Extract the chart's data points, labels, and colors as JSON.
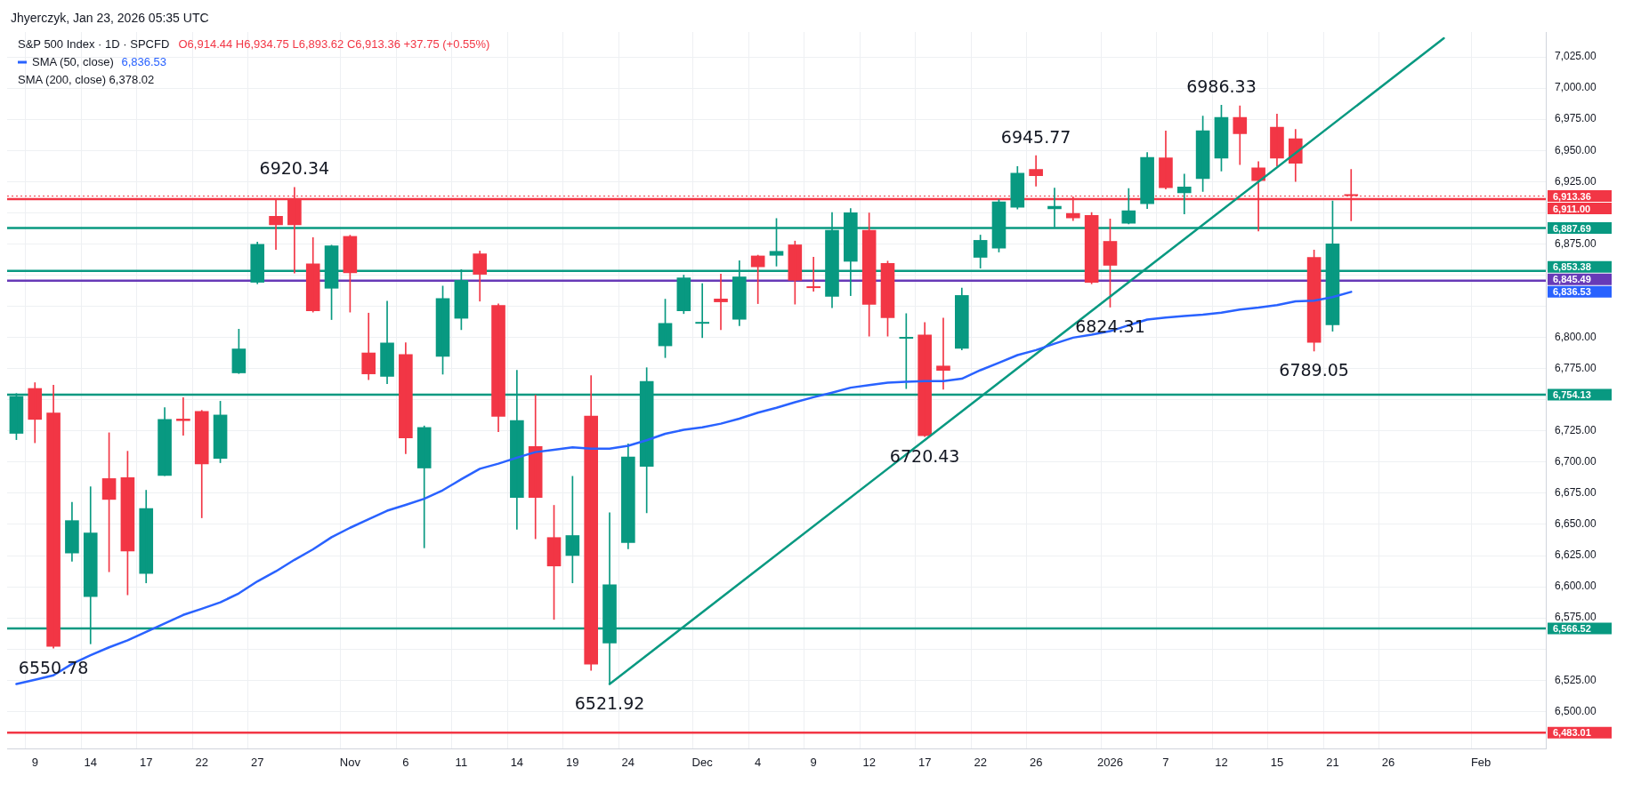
{
  "chart_data": {
    "type": "candlestick",
    "title": "S&P 500 Index · 1D · SPCFD",
    "subtitle": "O6,914.44 H6,934.75 L6,893.62 C6,913.36 +37.75 (+0.55%)",
    "annotations": [
      "Jhyerczyk, Jan 23, 2026 05:35 UTC",
      "SMA (200, close) 6,378.02",
      "6,836.53"
    ],
    "categories": [
      null,
      "9",
      null,
      null,
      "14",
      null,
      null,
      "17",
      null,
      null,
      "22",
      null,
      null,
      "27",
      null,
      null,
      null,
      null,
      "Nov",
      null,
      null,
      "6",
      null,
      null,
      "11",
      null,
      null,
      "14",
      null,
      null,
      "19",
      null,
      null,
      "24",
      null,
      null,
      null,
      "Dec",
      null,
      null,
      "4",
      null,
      null,
      "9",
      null,
      null,
      "12",
      null,
      null,
      "17",
      null,
      null,
      "22",
      null,
      null,
      "26",
      null,
      null,
      null,
      "2026",
      null,
      null,
      "7",
      null,
      null,
      "12",
      null,
      null,
      "15",
      null,
      null,
      "21",
      null,
      null,
      "26",
      null,
      null,
      null,
      null,
      "Feb",
      null,
      null,
      null
    ],
    "ohlc": [
      [
        6722.8,
        6755,
        6718,
        6752.9
      ],
      [
        6759.3,
        6763.7,
        6715.5,
        6734
      ],
      [
        6739.6,
        6761.7,
        6550.78,
        6552
      ],
      [
        6626.8,
        6667.8,
        6620.4,
        6653.3
      ],
      [
        6591.9,
        6680.2,
        6554.2,
        6643.3
      ],
      [
        6687,
        6723.5,
        6612,
        6669.8
      ],
      [
        6687.8,
        6708.7,
        6593.5,
        6628.4
      ],
      [
        6610.4,
        6677.4,
        6603.1,
        6662.9
      ],
      [
        6689,
        6743.6,
        6689,
        6734.4
      ],
      [
        6734.8,
        6751.7,
        6721.5,
        6733
      ],
      [
        6740.8,
        6741.5,
        6655.3,
        6698.3
      ],
      [
        6702.7,
        6748.8,
        6699.5,
        6738
      ],
      [
        6771.3,
        6806.6,
        6771,
        6791
      ],
      [
        6844,
        6876.5,
        6843,
        6874.9
      ],
      [
        6897.4,
        6911.4,
        6870.5,
        6890.1
      ],
      [
        6910.2,
        6920.34,
        6851.6,
        6890.1
      ],
      [
        6859.2,
        6880.1,
        6820.3,
        6821.1
      ],
      [
        6839.2,
        6874,
        6814.3,
        6873.7
      ],
      [
        6881.3,
        6882,
        6820.3,
        6851.6
      ],
      [
        6787.8,
        6819.5,
        6766.1,
        6770.5
      ],
      [
        6768.5,
        6829.1,
        6762.9,
        6795.8
      ],
      [
        6786.6,
        6795.8,
        6706.7,
        6719.1
      ],
      [
        6695,
        6729,
        6631.2,
        6728
      ],
      [
        6784.6,
        6841.2,
        6770.5,
        6831.5
      ],
      [
        6815.1,
        6854.4,
        6806.2,
        6846
      ],
      [
        6867.3,
        6869.3,
        6829.1,
        6850.4
      ],
      [
        6825.9,
        6827,
        6724.3,
        6736.4
      ],
      [
        6671.4,
        6773.7,
        6646.1,
        6733.6
      ],
      [
        6712.7,
        6753.7,
        6638.5,
        6671.4
      ],
      [
        6639.7,
        6665.3,
        6573.8,
        6616.4
      ],
      [
        6624.8,
        6688.6,
        6603.1,
        6641.3
      ],
      [
        6737.2,
        6769.3,
        6532.9,
        6537.7
      ],
      [
        6554.6,
        6659.3,
        6521.92,
        6601.9
      ],
      [
        6635.2,
        6714.7,
        6630.4,
        6704.3
      ],
      [
        6696.3,
        6775.7,
        6659.3,
        6764.9
      ],
      [
        6793,
        6830.7,
        6783.8,
        6811.5
      ],
      [
        6821.1,
        6850,
        6819.1,
        6848
      ],
      [
        6811,
        6843.2,
        6799.8,
        6812
      ],
      [
        6831.1,
        6850.8,
        6806.2,
        6828.3
      ],
      [
        6814.3,
        6861.6,
        6809.4,
        6848.8
      ],
      [
        6865.6,
        6866,
        6827.1,
        6856.4
      ],
      [
        6865.6,
        6895.3,
        6857.2,
        6869.3
      ],
      [
        6874.5,
        6877.3,
        6826.7,
        6845.6
      ],
      [
        6840.4,
        6864.4,
        6837.1,
        6839.6
      ],
      [
        6832.7,
        6900.2,
        6823.9,
        6886.1
      ],
      [
        6860.8,
        6903.4,
        6833.5,
        6900.2
      ],
      [
        6886.1,
        6899.8,
        6801,
        6826.3
      ],
      [
        6859.6,
        6861.2,
        6801,
        6815.5
      ],
      [
        6799,
        6819.1,
        6758.9,
        6799.4
      ],
      [
        6802.2,
        6811.9,
        6720.43,
        6721
      ],
      [
        6777.3,
        6815.5,
        6758.5,
        6773.3
      ],
      [
        6791,
        6839.6,
        6790,
        6833.9
      ],
      [
        6864,
        6882.1,
        6855.6,
        6878.1
      ],
      [
        6871.3,
        6910.6,
        6868.5,
        6909
      ],
      [
        6904.2,
        6937.1,
        6903,
        6931.9
      ],
      [
        6935.1,
        6945.77,
        6921.4,
        6929.5
      ],
      [
        6903,
        6919.8,
        6888.5,
        6905.4
      ],
      [
        6899.8,
        6912.6,
        6893.7,
        6895.7
      ],
      [
        6898.2,
        6900.2,
        6843,
        6844
      ],
      [
        6877.3,
        6895,
        6824.31,
        6857.6
      ],
      [
        6891.3,
        6919.4,
        6891,
        6901.8
      ],
      [
        6907,
        6948.3,
        6903.4,
        6944.7
      ],
      [
        6944.3,
        6965.6,
        6919,
        6919.8
      ],
      [
        6915.8,
        6931.1,
        6899,
        6921
      ],
      [
        6927.1,
        6977.6,
        6917,
        6966
      ],
      [
        6943.5,
        6986.33,
        6933.5,
        6976.8
      ],
      [
        6976.8,
        6985.7,
        6938.7,
        6963.2
      ],
      [
        6936.3,
        6941.1,
        6885.3,
        6925.5
      ],
      [
        6968.8,
        6979.2,
        6937.5,
        6943.5
      ],
      [
        6959.6,
        6966.8,
        6925,
        6939.5
      ],
      [
        6864.4,
        6870.1,
        6789.05,
        6795.8
      ],
      [
        6809.8,
        6909.4,
        6805,
        6875.3
      ],
      [
        6914.44,
        6934.75,
        6893.62,
        6913.36
      ],
      null,
      null,
      null,
      null,
      null,
      null,
      null,
      null,
      null,
      null
    ],
    "colors": [
      "#089981",
      "#f23645",
      "#f23645",
      "#089981",
      "#089981",
      "#f23645",
      "#f23645",
      "#089981",
      "#089981",
      "#f23645",
      "#f23645",
      "#089981",
      "#089981",
      "#089981",
      "#f23645",
      "#f23645",
      "#f23645",
      "#089981",
      "#f23645",
      "#f23645",
      "#089981",
      "#f23645",
      "#089981",
      "#089981",
      "#089981",
      "#f23645",
      "#f23645",
      "#089981",
      "#f23645",
      "#f23645",
      "#089981",
      "#f23645",
      "#089981",
      "#089981",
      "#089981",
      "#089981",
      "#089981",
      "#089981",
      "#f23645",
      "#089981",
      "#f23645",
      "#089981",
      "#f23645",
      "#f23645",
      "#089981",
      "#089981",
      "#f23645",
      "#f23645",
      "#089981",
      "#f23645",
      "#f23645",
      "#089981",
      "#089981",
      "#089981",
      "#089981",
      "#f23645",
      "#089981",
      "#f23645",
      "#f23645",
      "#f23645",
      "#089981",
      "#089981",
      "#f23645",
      "#089981",
      "#089981",
      "#089981",
      "#f23645",
      "#f23645",
      "#f23645",
      "#f23645",
      "#f23645",
      "#089981",
      "#f23645",
      null,
      null,
      null,
      null,
      null,
      null,
      null,
      null,
      null,
      null
    ],
    "value_labels": [
      null,
      null,
      "6550.78",
      null,
      null,
      null,
      null,
      null,
      null,
      null,
      null,
      null,
      null,
      null,
      null,
      "6920.34",
      null,
      null,
      null,
      null,
      null,
      null,
      null,
      null,
      null,
      null,
      null,
      null,
      null,
      null,
      null,
      null,
      "6521.92",
      null,
      null,
      null,
      null,
      null,
      null,
      null,
      null,
      null,
      null,
      null,
      null,
      null,
      null,
      null,
      null,
      "6720.43",
      null,
      null,
      null,
      null,
      null,
      "6945.77",
      null,
      null,
      null,
      "6824.31",
      null,
      null,
      null,
      null,
      null,
      "6986.33",
      null,
      null,
      null,
      null,
      "6789.05",
      null,
      null,
      null,
      null,
      null,
      null,
      null,
      null,
      null,
      null,
      null,
      null
    ],
    "series": [
      {
        "name": "SMA (50, close)",
        "type": "line",
        "color": "#2962ff",
        "values": [
          6522,
          6525.3,
          6528.9,
          6538.1,
          6545,
          6551.4,
          6557,
          6563.8,
          6570.6,
          6577.4,
          6582.3,
          6587.5,
          6594.7,
          6604.3,
          6612.4,
          6621.6,
          6630,
          6639.7,
          6647.3,
          6654.1,
          6661,
          6665.7,
          6670.6,
          6677.4,
          6686.2,
          6694.6,
          6698.7,
          6703.5,
          6708,
          6709.9,
          6711.9,
          6710.7,
          6710.7,
          6713.1,
          6717.5,
          6722.7,
          6725.9,
          6727.9,
          6730.8,
          6734.8,
          6739.6,
          6743.6,
          6748,
          6752,
          6755.7,
          6759.7,
          6761.7,
          6763.7,
          6764.5,
          6764.9,
          6764.9,
          6766.9,
          6773.7,
          6779.7,
          6785.8,
          6789.8,
          6795,
          6799.8,
          6802.2,
          6805,
          6809.8,
          6814.3,
          6815.9,
          6817.1,
          6818.3,
          6819.9,
          6822.3,
          6823.9,
          6825.9,
          6829,
          6829.5,
          6832.3,
          6836.53,
          null,
          null,
          null,
          null,
          null,
          null,
          null,
          null,
          null,
          null
        ]
      },
      {
        "type": "line",
        "color": "#089981",
        "values": [
          null,
          null,
          null,
          null,
          null,
          null,
          null,
          null,
          null,
          null,
          null,
          null,
          null,
          null,
          null,
          null,
          null,
          null,
          null,
          null,
          null,
          null,
          null,
          null,
          null,
          null,
          null,
          null,
          null,
          null,
          null,
          null,
          6521.92,
          null,
          null,
          null,
          null,
          null,
          null,
          null,
          null,
          null,
          null,
          null,
          null,
          null,
          null,
          null,
          null,
          null,
          null,
          null,
          null,
          null,
          null,
          null,
          null,
          null,
          null,
          null,
          null,
          null,
          null,
          null,
          null,
          null,
          null,
          null,
          null,
          null,
          null,
          null,
          null,
          null,
          null,
          null,
          null,
          7040,
          null,
          null,
          null,
          null,
          null
        ]
      }
    ],
    "ref_lines": [
      {
        "axis": "y",
        "value": 6913.36,
        "label": "6,913.36",
        "color": "#f23645",
        "line_style": "dotted"
      },
      {
        "axis": "y",
        "value": 6911.0,
        "label": "6,911.00",
        "color": "#f23645"
      },
      {
        "axis": "y",
        "value": 6887.69,
        "label": "6,887.69",
        "color": "#089981"
      },
      {
        "axis": "y",
        "value": 6853.38,
        "label": "6,853.38",
        "color": "#089981"
      },
      {
        "axis": "y",
        "value": 6845.49,
        "label": "6,845.49",
        "color": "#673ab7"
      },
      {
        "axis": "y",
        "value": 6754.13,
        "label": "6,754.13",
        "color": "#089981"
      },
      {
        "axis": "y",
        "value": 6566.52,
        "label": "6,566.52",
        "color": "#089981"
      },
      {
        "axis": "y",
        "value": 6483.01,
        "label": "6,483.01",
        "color": "#f23645"
      }
    ],
    "ylim": [
      6470,
      7045
    ],
    "yticks": [
      {
        "value": 6500,
        "label": "6,500.00"
      },
      {
        "value": 6525,
        "label": "6,525.00"
      },
      {
        "value": 6550,
        "label": null
      },
      {
        "value": 6575,
        "label": "6,575.00"
      },
      {
        "value": 6600,
        "label": "6,600.00"
      },
      {
        "value": 6625,
        "label": "6,625.00"
      },
      {
        "value": 6650,
        "label": "6,650.00"
      },
      {
        "value": 6675,
        "label": "6,675.00"
      },
      {
        "value": 6700,
        "label": "6,700.00"
      },
      {
        "value": 6725,
        "label": "6,725.00"
      },
      {
        "value": 6750,
        "label": null
      },
      {
        "value": 6775,
        "label": "6,775.00"
      },
      {
        "value": 6800,
        "label": "6,800.00"
      },
      {
        "value": 6825,
        "label": null
      },
      {
        "value": 6850,
        "label": null
      },
      {
        "value": 6875,
        "label": "6,875.00"
      },
      {
        "value": 6900,
        "label": null
      },
      {
        "value": 6925,
        "label": "6,925.00"
      },
      {
        "value": 6950,
        "label": "6,950.00"
      },
      {
        "value": 6975,
        "label": "6,975.00"
      },
      {
        "value": 7000,
        "label": "7,000.00"
      },
      {
        "value": 7025,
        "label": "7,025.00"
      }
    ],
    "grid": true,
    "legend": "top left",
    "marker": "none"
  }
}
